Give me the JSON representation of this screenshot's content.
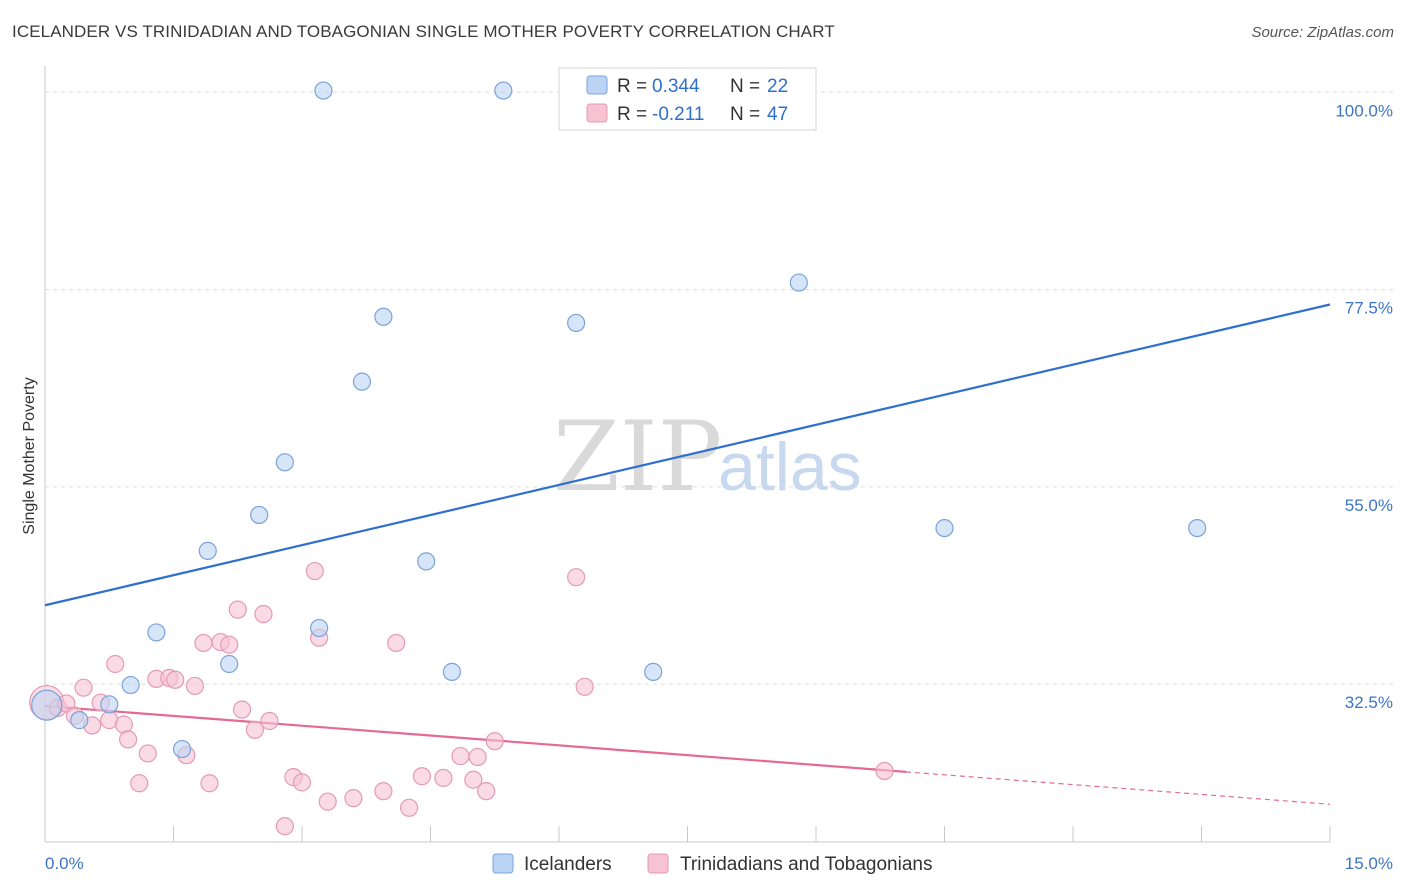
{
  "header": {
    "title": "ICELANDER VS TRINIDADIAN AND TOBAGONIAN SINGLE MOTHER POVERTY CORRELATION CHART",
    "source": "Source: ZipAtlas.com"
  },
  "watermark": {
    "zip": "ZIP",
    "atlas": "atlas"
  },
  "colors": {
    "blue": "#2f6fd0",
    "blue_fill": "#bcd3f3",
    "pink": "#e46a95",
    "pink_fill": "#f7c3d3",
    "axis_text": "#3d74c6",
    "grid": "#dddddd"
  },
  "legend": {
    "rows": [
      {
        "r_label": "R = ",
        "r_value": "0.344",
        "n_label": "N = ",
        "n_value": "22"
      },
      {
        "r_label": "R = ",
        "r_value": "-0.211",
        "n_label": "N = ",
        "n_value": "47"
      }
    ]
  },
  "chart_data": {
    "type": "scatter",
    "title": "ICELANDER VS TRINIDADIAN AND TOBAGONIAN SINGLE MOTHER POVERTY CORRELATION CHART",
    "xlabel": "",
    "ylabel": "Single Mother Poverty",
    "xlim": [
      0,
      15
    ],
    "ylim": [
      14.5,
      103
    ],
    "x_ticks": [
      0,
      1.5,
      3,
      4.5,
      6,
      7.5,
      9,
      10.5,
      12,
      13.5,
      15
    ],
    "x_tick_labels": {
      "0": "0.0%",
      "15": "15.0%"
    },
    "y_gridlines": [
      32.5,
      55.0,
      77.5,
      100.0
    ],
    "y_tick_labels": [
      "32.5%",
      "55.0%",
      "77.5%",
      "100.0%"
    ],
    "series": [
      {
        "name": "Icelanders",
        "color": "#2f6fd0",
        "points": [
          [
            0.02,
            30.1
          ],
          [
            0.4,
            28.4
          ],
          [
            0.75,
            30.2
          ],
          [
            1.0,
            32.4
          ],
          [
            1.3,
            38.4
          ],
          [
            1.6,
            25.1
          ],
          [
            1.9,
            47.7
          ],
          [
            2.15,
            34.8
          ],
          [
            2.5,
            51.8
          ],
          [
            2.8,
            57.8
          ],
          [
            3.2,
            38.9
          ],
          [
            3.25,
            100.2
          ],
          [
            3.7,
            67.0
          ],
          [
            3.95,
            74.4
          ],
          [
            4.45,
            46.5
          ],
          [
            4.75,
            33.9
          ],
          [
            5.35,
            100.2
          ],
          [
            6.2,
            73.7
          ],
          [
            7.1,
            33.9
          ],
          [
            8.8,
            78.3
          ],
          [
            10.5,
            50.3
          ],
          [
            13.45,
            50.3
          ]
        ],
        "trend": {
          "x": [
            0,
            15
          ],
          "y": [
            41.5,
            75.8
          ]
        }
      },
      {
        "name": "Trinidadians and Tobagonians",
        "color": "#e46a95",
        "points": [
          [
            0.02,
            30.4
          ],
          [
            0.15,
            29.8
          ],
          [
            0.25,
            30.3
          ],
          [
            0.35,
            28.9
          ],
          [
            0.45,
            32.1
          ],
          [
            0.55,
            27.8
          ],
          [
            0.65,
            30.4
          ],
          [
            0.75,
            28.4
          ],
          [
            0.82,
            34.8
          ],
          [
            0.92,
            27.9
          ],
          [
            0.97,
            26.2
          ],
          [
            1.1,
            21.2
          ],
          [
            1.2,
            24.6
          ],
          [
            1.3,
            33.1
          ],
          [
            1.45,
            33.2
          ],
          [
            1.52,
            33.0
          ],
          [
            1.65,
            24.4
          ],
          [
            1.75,
            32.3
          ],
          [
            1.85,
            37.2
          ],
          [
            1.92,
            21.2
          ],
          [
            2.05,
            37.3
          ],
          [
            2.15,
            37.0
          ],
          [
            2.25,
            41.0
          ],
          [
            2.3,
            29.6
          ],
          [
            2.45,
            27.3
          ],
          [
            2.55,
            40.5
          ],
          [
            2.62,
            28.3
          ],
          [
            2.8,
            16.3
          ],
          [
            2.9,
            21.9
          ],
          [
            3.0,
            21.3
          ],
          [
            3.15,
            45.4
          ],
          [
            3.2,
            37.8
          ],
          [
            3.3,
            19.1
          ],
          [
            3.6,
            19.5
          ],
          [
            3.95,
            20.3
          ],
          [
            4.1,
            37.2
          ],
          [
            4.25,
            18.4
          ],
          [
            4.4,
            22.0
          ],
          [
            4.65,
            21.8
          ],
          [
            4.85,
            24.3
          ],
          [
            5.0,
            21.6
          ],
          [
            5.05,
            24.2
          ],
          [
            5.15,
            20.3
          ],
          [
            5.25,
            26.0
          ],
          [
            6.2,
            44.7
          ],
          [
            6.3,
            32.2
          ],
          [
            9.8,
            22.6
          ]
        ],
        "trend": {
          "x": [
            0,
            10.05
          ],
          "y": [
            30.0,
            22.5
          ]
        },
        "trend_extension": {
          "x": [
            10.05,
            15
          ],
          "y": [
            22.5,
            18.8
          ]
        }
      }
    ],
    "legend_position": "top-center"
  },
  "bottom_legend": {
    "items": [
      {
        "label": "Icelanders"
      },
      {
        "label": "Trinidadians and Tobagonians"
      }
    ]
  }
}
